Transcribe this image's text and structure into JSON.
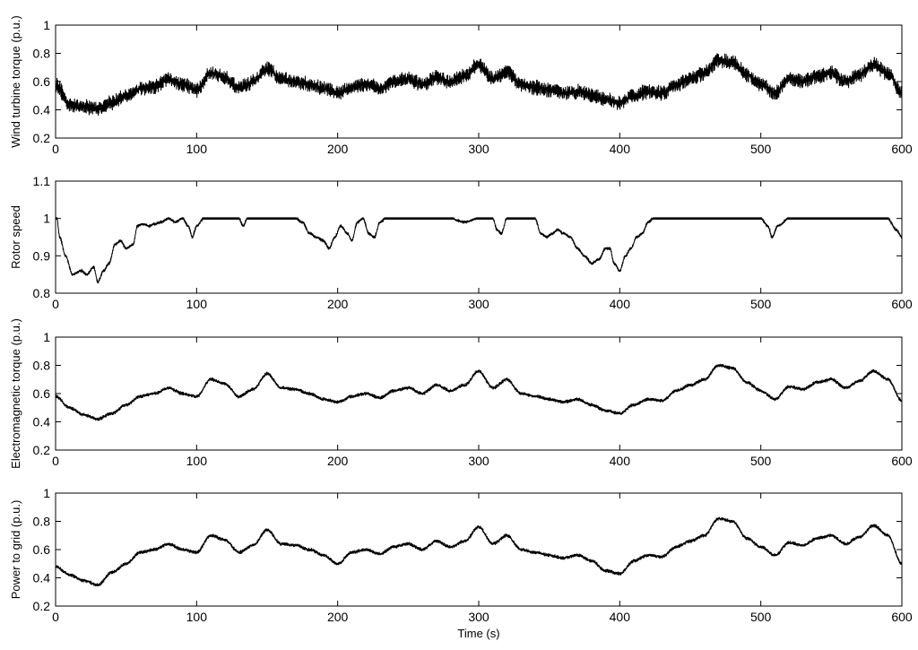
{
  "chart_data": [
    {
      "type": "line",
      "ylabel": "Wind turbine torque (p.u.)",
      "xlabel": "",
      "xlim": [
        0,
        600
      ],
      "ylim": [
        0.2,
        1
      ],
      "xticks": [
        "0",
        "100",
        "200",
        "300",
        "400",
        "500",
        "600"
      ],
      "yticks": [
        "0.2",
        "0.4",
        "0.6",
        "0.8",
        "1"
      ],
      "ripple": 0.08,
      "series": [
        {
          "x": [
            0,
            10,
            20,
            30,
            40,
            50,
            60,
            70,
            80,
            90,
            100,
            110,
            120,
            130,
            140,
            150,
            160,
            170,
            180,
            190,
            200,
            210,
            220,
            230,
            240,
            250,
            260,
            270,
            280,
            290,
            300,
            310,
            320,
            330,
            340,
            350,
            360,
            370,
            380,
            390,
            400,
            410,
            420,
            430,
            440,
            450,
            460,
            470,
            480,
            490,
            500,
            510,
            520,
            530,
            540,
            550,
            560,
            570,
            580,
            590,
            600
          ],
          "y": [
            0.58,
            0.44,
            0.42,
            0.41,
            0.45,
            0.5,
            0.55,
            0.56,
            0.62,
            0.58,
            0.54,
            0.66,
            0.63,
            0.55,
            0.6,
            0.69,
            0.62,
            0.6,
            0.58,
            0.55,
            0.52,
            0.56,
            0.58,
            0.55,
            0.6,
            0.62,
            0.58,
            0.63,
            0.6,
            0.64,
            0.72,
            0.62,
            0.67,
            0.58,
            0.56,
            0.54,
            0.52,
            0.53,
            0.5,
            0.47,
            0.45,
            0.5,
            0.53,
            0.52,
            0.58,
            0.62,
            0.66,
            0.75,
            0.74,
            0.65,
            0.58,
            0.52,
            0.62,
            0.6,
            0.64,
            0.66,
            0.6,
            0.65,
            0.72,
            0.66,
            0.52
          ]
        }
      ]
    },
    {
      "type": "line",
      "ylabel": "Rotor speed",
      "xlabel": "",
      "xlim": [
        0,
        600
      ],
      "ylim": [
        0.8,
        1.1
      ],
      "xticks": [
        "0",
        "100",
        "200",
        "300",
        "400",
        "500",
        "600"
      ],
      "yticks": [
        "0.8",
        "0.9",
        "1",
        "1.1"
      ],
      "ripple": 0.006,
      "series": [
        {
          "x": [
            0,
            3,
            7,
            12,
            18,
            22,
            27,
            30,
            34,
            38,
            42,
            46,
            50,
            55,
            58,
            62,
            66,
            70,
            75,
            80,
            85,
            90,
            94,
            97,
            100,
            105,
            110,
            120,
            130,
            133,
            136,
            140,
            150,
            160,
            170,
            175,
            180,
            185,
            190,
            194,
            198,
            202,
            207,
            210,
            214,
            218,
            222,
            226,
            230,
            234,
            240,
            250,
            260,
            270,
            280,
            290,
            300,
            310,
            313,
            316,
            320,
            330,
            340,
            344,
            348,
            352,
            356,
            360,
            365,
            370,
            375,
            380,
            385,
            390,
            393,
            396,
            400,
            404,
            408,
            412,
            416,
            420,
            424,
            430,
            440,
            450,
            460,
            470,
            480,
            490,
            500,
            505,
            508,
            512,
            520,
            530,
            540,
            550,
            560,
            570,
            580,
            590,
            596,
            600
          ],
          "y": [
            1.03,
            0.95,
            0.9,
            0.85,
            0.86,
            0.85,
            0.87,
            0.83,
            0.86,
            0.88,
            0.93,
            0.94,
            0.92,
            0.93,
            0.98,
            0.985,
            0.98,
            0.985,
            0.99,
            1.0,
            0.99,
            1.0,
            0.98,
            0.95,
            0.98,
            1.0,
            1.0,
            1.0,
            1.0,
            0.98,
            1.0,
            1.0,
            1.0,
            1.0,
            1.0,
            0.99,
            0.96,
            0.95,
            0.94,
            0.92,
            0.95,
            0.98,
            0.96,
            0.94,
            0.99,
            1.0,
            0.96,
            0.95,
            0.99,
            1.0,
            1.0,
            1.0,
            1.0,
            1.0,
            1.0,
            0.99,
            1.0,
            1.0,
            0.97,
            0.96,
            1.0,
            1.0,
            1.0,
            0.96,
            0.95,
            0.96,
            0.97,
            0.96,
            0.95,
            0.92,
            0.9,
            0.88,
            0.89,
            0.92,
            0.92,
            0.88,
            0.86,
            0.9,
            0.92,
            0.95,
            0.96,
            0.99,
            1.0,
            1.0,
            1.0,
            1.0,
            1.0,
            1.0,
            1.0,
            1.0,
            1.0,
            0.98,
            0.95,
            0.98,
            1.0,
            1.0,
            1.0,
            1.0,
            1.0,
            1.0,
            1.0,
            1.0,
            0.97,
            0.95
          ]
        }
      ]
    },
    {
      "type": "line",
      "ylabel": "Electromagnetic torque (p.u.)",
      "xlabel": "",
      "xlim": [
        0,
        600
      ],
      "ylim": [
        0.2,
        1
      ],
      "xticks": [
        "0",
        "100",
        "200",
        "300",
        "400",
        "500",
        "600"
      ],
      "yticks": [
        "0.2",
        "0.4",
        "0.6",
        "0.8",
        "1"
      ],
      "ripple": 0.02,
      "series": [
        {
          "x": [
            0,
            10,
            20,
            30,
            40,
            50,
            60,
            70,
            80,
            90,
            100,
            110,
            120,
            130,
            140,
            150,
            160,
            170,
            180,
            190,
            200,
            210,
            220,
            230,
            240,
            250,
            260,
            270,
            280,
            290,
            300,
            310,
            320,
            330,
            340,
            350,
            360,
            370,
            380,
            390,
            400,
            410,
            420,
            430,
            440,
            450,
            460,
            470,
            480,
            490,
            500,
            510,
            520,
            530,
            540,
            550,
            560,
            570,
            580,
            590,
            600
          ],
          "y": [
            0.58,
            0.5,
            0.45,
            0.42,
            0.46,
            0.52,
            0.58,
            0.6,
            0.64,
            0.6,
            0.58,
            0.7,
            0.67,
            0.58,
            0.63,
            0.74,
            0.64,
            0.63,
            0.6,
            0.56,
            0.54,
            0.58,
            0.6,
            0.57,
            0.62,
            0.64,
            0.6,
            0.66,
            0.62,
            0.66,
            0.76,
            0.64,
            0.7,
            0.6,
            0.58,
            0.56,
            0.54,
            0.56,
            0.52,
            0.48,
            0.46,
            0.52,
            0.56,
            0.55,
            0.62,
            0.66,
            0.7,
            0.8,
            0.78,
            0.68,
            0.62,
            0.56,
            0.65,
            0.63,
            0.68,
            0.7,
            0.64,
            0.69,
            0.76,
            0.7,
            0.55
          ]
        }
      ]
    },
    {
      "type": "line",
      "ylabel": "Power to grid (p.u.)",
      "xlabel": "Time (s)",
      "xlim": [
        0,
        600
      ],
      "ylim": [
        0.2,
        1
      ],
      "xticks": [
        "0",
        "100",
        "200",
        "300",
        "400",
        "500",
        "600"
      ],
      "yticks": [
        "0.2",
        "0.4",
        "0.6",
        "0.8",
        "1"
      ],
      "ripple": 0.02,
      "series": [
        {
          "x": [
            0,
            10,
            20,
            30,
            40,
            50,
            60,
            70,
            80,
            90,
            100,
            110,
            120,
            130,
            140,
            150,
            160,
            170,
            180,
            190,
            200,
            210,
            220,
            230,
            240,
            250,
            260,
            270,
            280,
            290,
            300,
            310,
            320,
            330,
            340,
            350,
            360,
            370,
            380,
            390,
            400,
            410,
            420,
            430,
            440,
            450,
            460,
            470,
            480,
            490,
            500,
            510,
            520,
            530,
            540,
            550,
            560,
            570,
            580,
            590,
            600
          ],
          "y": [
            0.48,
            0.42,
            0.38,
            0.35,
            0.44,
            0.5,
            0.58,
            0.6,
            0.64,
            0.6,
            0.58,
            0.7,
            0.67,
            0.58,
            0.63,
            0.74,
            0.64,
            0.63,
            0.6,
            0.56,
            0.5,
            0.58,
            0.6,
            0.57,
            0.62,
            0.64,
            0.6,
            0.66,
            0.62,
            0.66,
            0.76,
            0.64,
            0.7,
            0.6,
            0.58,
            0.56,
            0.54,
            0.56,
            0.52,
            0.45,
            0.43,
            0.52,
            0.56,
            0.55,
            0.62,
            0.66,
            0.7,
            0.82,
            0.8,
            0.68,
            0.62,
            0.56,
            0.65,
            0.63,
            0.68,
            0.7,
            0.64,
            0.69,
            0.77,
            0.7,
            0.5
          ]
        }
      ]
    }
  ]
}
